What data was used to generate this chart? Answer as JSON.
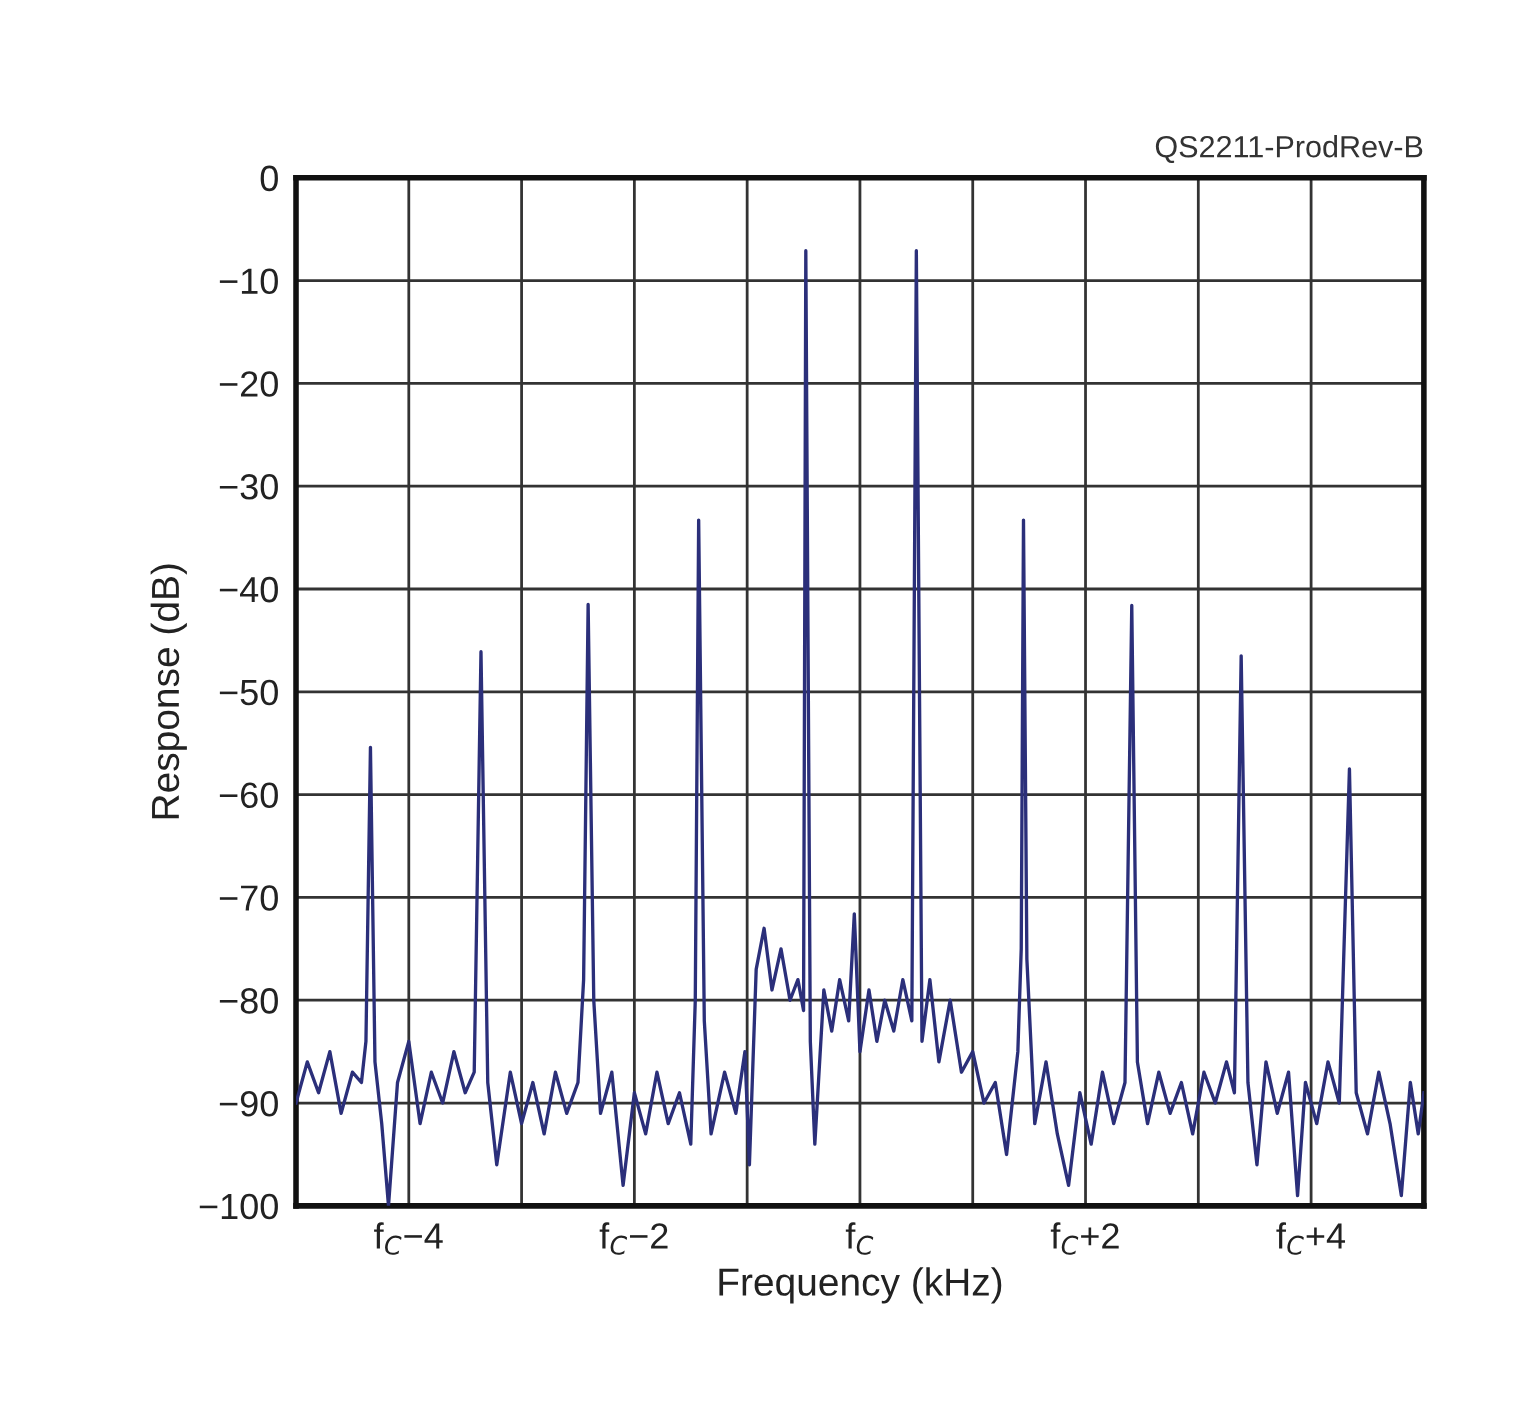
{
  "chart_data": {
    "type": "line",
    "xlabel": "Frequency (kHz)",
    "ylabel": "Response (dB)",
    "annotations": [
      "QS2211-ProdRev-B"
    ],
    "xlim": [
      -5,
      5
    ],
    "ylim": [
      -100,
      0
    ],
    "xticks": [
      {
        "value": -4,
        "label": "f$_{C}$−4"
      },
      {
        "value": -3,
        "label": null
      },
      {
        "value": -2,
        "label": "f$_{C}$−2"
      },
      {
        "value": -1,
        "label": null
      },
      {
        "value": 0,
        "label": "f$_{C}$"
      },
      {
        "value": 1,
        "label": null
      },
      {
        "value": 2,
        "label": "f$_{C}$+2"
      },
      {
        "value": 3,
        "label": null
      },
      {
        "value": 4,
        "label": "f$_{C}$+4"
      }
    ],
    "yticks": [
      {
        "value": 0,
        "label": "0"
      },
      {
        "value": -10,
        "label": "−10"
      },
      {
        "value": -20,
        "label": "−20"
      },
      {
        "value": -30,
        "label": "−30"
      },
      {
        "value": -40,
        "label": "−40"
      },
      {
        "value": -50,
        "label": "−50"
      },
      {
        "value": -60,
        "label": "−60"
      },
      {
        "value": -70,
        "label": "−70"
      },
      {
        "value": -80,
        "label": "−80"
      },
      {
        "value": -90,
        "label": "−90"
      },
      {
        "value": -100,
        "label": "−100"
      }
    ],
    "grid": true,
    "marker": "none",
    "line_style": "solid",
    "series": [
      {
        "color": "#2b2f7a",
        "x": [
          -5.0,
          -4.9,
          -4.8,
          -4.7,
          -4.6,
          -4.5,
          -4.42,
          -4.38,
          -4.34,
          -4.3,
          -4.24,
          -4.18,
          -4.1,
          -4.0,
          -3.9,
          -3.8,
          -3.7,
          -3.6,
          -3.5,
          -3.42,
          -3.36,
          -3.3,
          -3.22,
          -3.1,
          -3.0,
          -2.9,
          -2.8,
          -2.7,
          -2.6,
          -2.5,
          -2.45,
          -2.41,
          -2.36,
          -2.3,
          -2.2,
          -2.1,
          -2.0,
          -1.9,
          -1.8,
          -1.7,
          -1.6,
          -1.5,
          -1.46,
          -1.43,
          -1.38,
          -1.32,
          -1.2,
          -1.1,
          -1.02,
          -0.98,
          -0.92,
          -0.85,
          -0.78,
          -0.7,
          -0.62,
          -0.55,
          -0.5,
          -0.48,
          -0.44,
          -0.4,
          -0.32,
          -0.25,
          -0.18,
          -0.1,
          -0.05,
          0.0,
          0.08,
          0.15,
          0.22,
          0.3,
          0.38,
          0.46,
          0.5,
          0.55,
          0.62,
          0.7,
          0.8,
          0.9,
          1.0,
          1.1,
          1.2,
          1.3,
          1.4,
          1.43,
          1.45,
          1.48,
          1.55,
          1.65,
          1.75,
          1.85,
          1.95,
          2.05,
          2.15,
          2.25,
          2.35,
          2.41,
          2.46,
          2.55,
          2.65,
          2.75,
          2.85,
          2.95,
          3.05,
          3.15,
          3.25,
          3.32,
          3.38,
          3.44,
          3.52,
          3.6,
          3.7,
          3.8,
          3.88,
          3.95,
          4.05,
          4.15,
          4.25,
          4.34,
          4.4,
          4.5,
          4.6,
          4.7,
          4.8,
          4.88,
          4.95,
          5.0
        ],
        "values": [
          -90,
          -86,
          -89,
          -85,
          -91,
          -87,
          -88,
          -84,
          -55.4,
          -86,
          -92,
          -100,
          -88,
          -84,
          -92,
          -87,
          -90,
          -85,
          -89,
          -87,
          -46.1,
          -88,
          -96,
          -87,
          -92,
          -88,
          -93,
          -87,
          -91,
          -88,
          -78,
          -41.5,
          -80,
          -91,
          -87,
          -98,
          -89,
          -93,
          -87,
          -92,
          -89,
          -94,
          -80,
          -33.3,
          -82,
          -93,
          -87,
          -91,
          -85,
          -96,
          -77,
          -73,
          -79,
          -75,
          -80,
          -78,
          -81,
          -7.1,
          -84,
          -94,
          -79,
          -83,
          -78,
          -82,
          -71.6,
          -85,
          -79,
          -84,
          -80,
          -83,
          -78,
          -82,
          -7.1,
          -84,
          -78,
          -86,
          -80,
          -87,
          -85,
          -90,
          -88,
          -95,
          -85,
          -75,
          -33.3,
          -76,
          -92,
          -86,
          -93,
          -98,
          -89,
          -94,
          -87,
          -92,
          -88,
          -41.6,
          -86,
          -92,
          -87,
          -91,
          -88,
          -93,
          -87,
          -90,
          -86,
          -89,
          -46.5,
          -88,
          -96,
          -86,
          -91,
          -87,
          -99,
          -88,
          -92,
          -86,
          -90,
          -57.5,
          -89,
          -93,
          -87,
          -92,
          -99,
          -88,
          -93,
          -89
        ]
      }
    ]
  }
}
